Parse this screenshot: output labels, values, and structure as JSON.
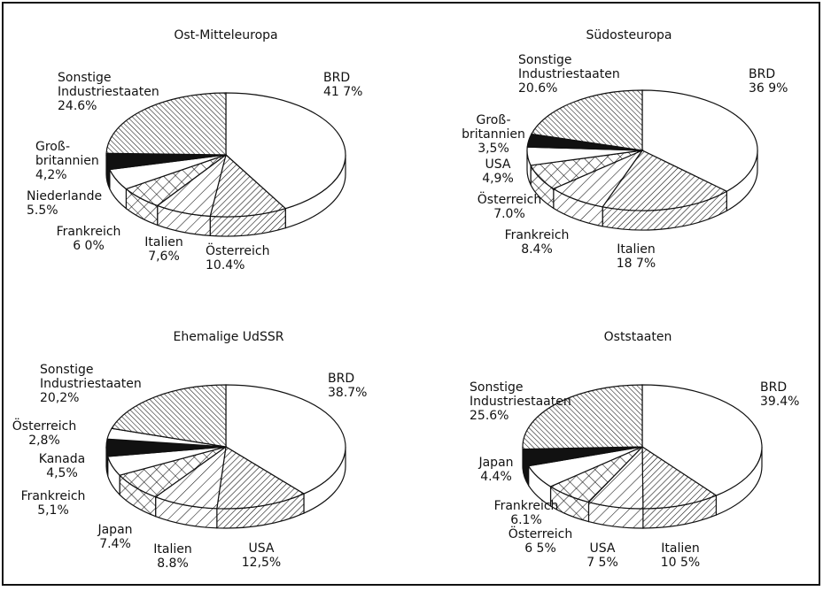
{
  "chart_data": [
    {
      "type": "pie",
      "title": "Ost-Mitteleuropa",
      "slices": [
        {
          "label_lines": [
            "BRD",
            "41 7%"
          ],
          "value": 41.7,
          "pattern": "blank"
        },
        {
          "label_lines": [
            "Österreich",
            "10.4%"
          ],
          "value": 10.4,
          "pattern": "diagDense"
        },
        {
          "label_lines": [
            "Italien",
            "7,6%"
          ],
          "value": 7.6,
          "pattern": "diagSparse"
        },
        {
          "label_lines": [
            "Frankreich",
            "6 0%"
          ],
          "value": 6.0,
          "pattern": "cross"
        },
        {
          "label_lines": [
            "Niederlande",
            "5.5%"
          ],
          "value": 5.5,
          "pattern": "blank"
        },
        {
          "label_lines": [
            "Groß-",
            "britannien",
            "4,2%"
          ],
          "value": 4.2,
          "pattern": "solid"
        },
        {
          "label_lines": [
            "Sonstige",
            "Industriestaaten",
            "24.6%"
          ],
          "value": 24.6,
          "pattern": "backDiag"
        }
      ]
    },
    {
      "type": "pie",
      "title": "Südosteuropa",
      "slices": [
        {
          "label_lines": [
            "BRD",
            "36 9%"
          ],
          "value": 36.9,
          "pattern": "blank"
        },
        {
          "label_lines": [
            "Italien",
            "18 7%"
          ],
          "value": 18.7,
          "pattern": "diagDense"
        },
        {
          "label_lines": [
            "Frankreich",
            "8.4%"
          ],
          "value": 8.4,
          "pattern": "diagSparse"
        },
        {
          "label_lines": [
            "Österreich",
            "7.0%"
          ],
          "value": 7.0,
          "pattern": "cross"
        },
        {
          "label_lines": [
            "USA",
            "4,9%"
          ],
          "value": 4.9,
          "pattern": "blank"
        },
        {
          "label_lines": [
            "Groß-",
            "britannien",
            "3,5%"
          ],
          "value": 3.5,
          "pattern": "solid"
        },
        {
          "label_lines": [
            "Sonstige",
            "Industriestaaten",
            "20.6%"
          ],
          "value": 20.6,
          "pattern": "backDiag"
        }
      ]
    },
    {
      "type": "pie",
      "title": "Ehemalige UdSSR",
      "slices": [
        {
          "label_lines": [
            "BRD",
            "38.7%"
          ],
          "value": 38.7,
          "pattern": "blank"
        },
        {
          "label_lines": [
            "USA",
            "12,5%"
          ],
          "value": 12.5,
          "pattern": "diagDense"
        },
        {
          "label_lines": [
            "Italien",
            "8.8%"
          ],
          "value": 8.8,
          "pattern": "diagSparse"
        },
        {
          "label_lines": [
            "Japan",
            "7.4%"
          ],
          "value": 7.4,
          "pattern": "cross"
        },
        {
          "label_lines": [
            "Frankreich",
            "5,1%"
          ],
          "value": 5.1,
          "pattern": "blank"
        },
        {
          "label_lines": [
            "Kanada",
            "4,5%"
          ],
          "value": 4.5,
          "pattern": "solid"
        },
        {
          "label_lines": [
            "Österreich",
            "2,8%"
          ],
          "value": 2.8,
          "pattern": "blank"
        },
        {
          "label_lines": [
            "Sonstige",
            "Industriestaaten",
            "20,2%"
          ],
          "value": 20.2,
          "pattern": "backDiag"
        }
      ]
    },
    {
      "type": "pie",
      "title": "Oststaaten",
      "slices": [
        {
          "label_lines": [
            "BRD",
            "39.4%"
          ],
          "value": 39.4,
          "pattern": "blank"
        },
        {
          "label_lines": [
            "Italien",
            "10 5%"
          ],
          "value": 10.5,
          "pattern": "diagDense"
        },
        {
          "label_lines": [
            "USA",
            "7 5%"
          ],
          "value": 7.5,
          "pattern": "diagSparse"
        },
        {
          "label_lines": [
            "Österreich",
            "6 5%"
          ],
          "value": 6.5,
          "pattern": "cross"
        },
        {
          "label_lines": [
            "Frankreich",
            "6.1%"
          ],
          "value": 6.1,
          "pattern": "blank"
        },
        {
          "label_lines": [
            "Japan",
            "4.4%"
          ],
          "value": 4.4,
          "pattern": "solid"
        },
        {
          "label_lines": [
            "Sonstige",
            "Industriestaaten",
            "25.6%"
          ],
          "value": 25.6,
          "pattern": "backDiag"
        }
      ]
    }
  ]
}
